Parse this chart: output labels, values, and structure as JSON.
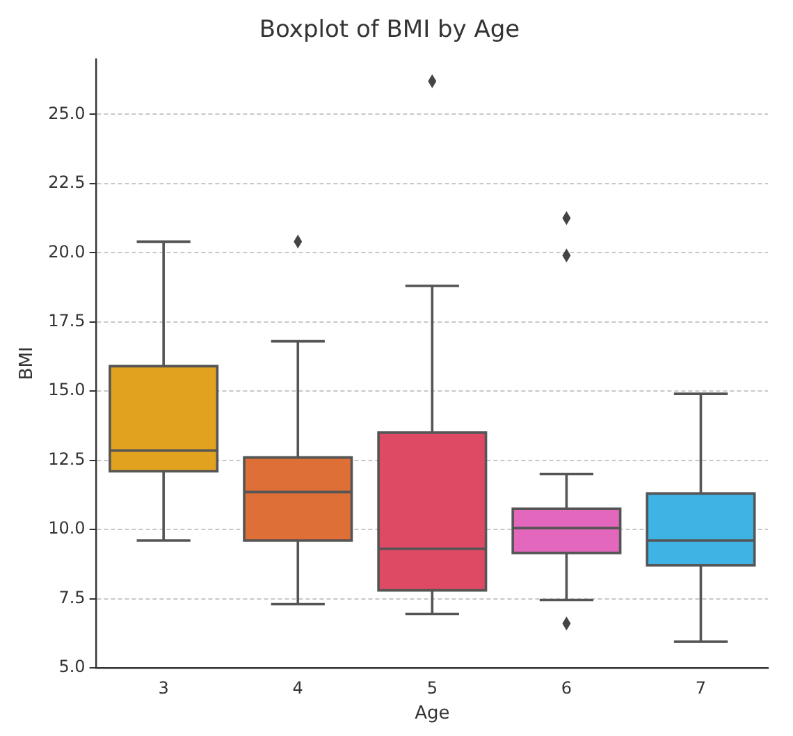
{
  "chart_data": {
    "type": "box",
    "title": "Boxplot of BMI by Age",
    "xlabel": "Age",
    "ylabel": "BMI",
    "categories": [
      "3",
      "4",
      "5",
      "6",
      "7"
    ],
    "colors": [
      "#e1a21f",
      "#dd6f37",
      "#de4a64",
      "#e467be",
      "#3fb3e4"
    ],
    "boxes": [
      {
        "low": 9.6,
        "q1": 12.1,
        "median": 12.85,
        "q3": 15.9,
        "high": 20.4
      },
      {
        "low": 7.3,
        "q1": 9.6,
        "median": 11.35,
        "q3": 12.6,
        "high": 16.8,
        "outliers": [
          20.4
        ]
      },
      {
        "low": 6.95,
        "q1": 7.8,
        "median": 9.3,
        "q3": 13.5,
        "high": 18.8,
        "outliers": [
          26.2
        ]
      },
      {
        "low": 7.45,
        "q1": 9.15,
        "median": 10.05,
        "q3": 10.75,
        "high": 12.0,
        "outliers": [
          21.25,
          19.9,
          6.6
        ]
      },
      {
        "low": 5.95,
        "q1": 8.7,
        "median": 9.6,
        "q3": 11.3,
        "high": 14.9
      }
    ],
    "ylim": [
      5,
      27
    ],
    "yticks": [
      {
        "value": 5,
        "label": "5.0"
      },
      {
        "value": 7.5,
        "label": "7.5"
      },
      {
        "value": 10,
        "label": "10.0"
      },
      {
        "value": 12.5,
        "label": "12.5"
      },
      {
        "value": 15,
        "label": "15.0"
      },
      {
        "value": 17.5,
        "label": "17.5"
      },
      {
        "value": 20,
        "label": "20.0"
      },
      {
        "value": 22.5,
        "label": "22.5"
      },
      {
        "value": 25,
        "label": "25.0"
      }
    ],
    "grid": "y",
    "marker": "diamond"
  }
}
